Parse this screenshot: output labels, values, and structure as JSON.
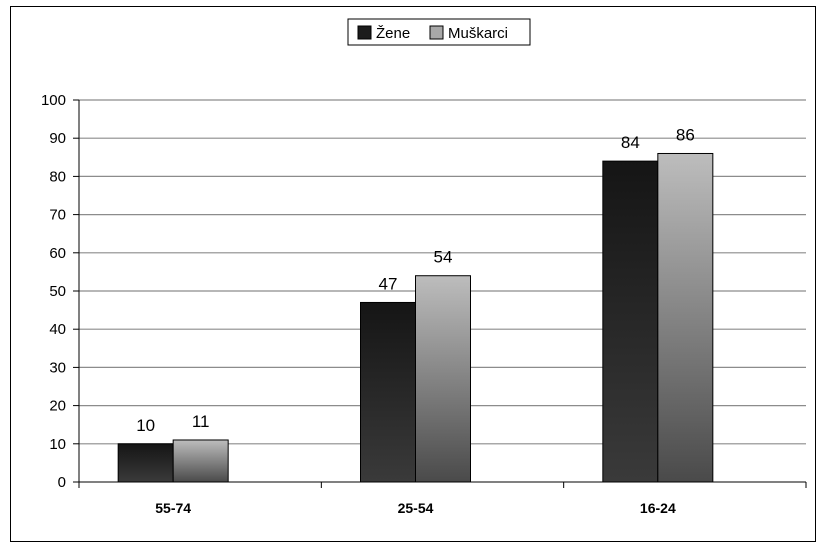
{
  "chart_data": {
    "type": "bar",
    "categories": [
      "55-74",
      "25-54",
      "16-24"
    ],
    "series": [
      {
        "name": "Žene",
        "values": [
          10,
          47,
          84
        ],
        "color": "#1c1c1c"
      },
      {
        "name": "Muškarci",
        "values": [
          11,
          54,
          86
        ],
        "color": "#a8a8a8"
      }
    ],
    "ylim": [
      0,
      100
    ],
    "yticks": [
      "0",
      "10",
      "20",
      "30",
      "40",
      "50",
      "60",
      "70",
      "80",
      "90",
      "100"
    ],
    "grid": true,
    "legend": "top-center",
    "data_labels": true
  }
}
